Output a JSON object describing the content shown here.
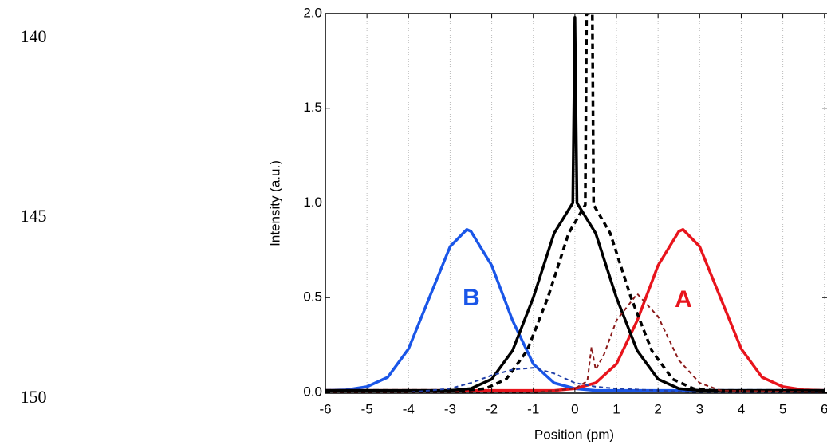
{
  "line_numbers": [
    "140",
    "145",
    "150"
  ],
  "chart_data": {
    "type": "line",
    "xlabel": "Position (pm)",
    "ylabel": "Intensity (a.u.)",
    "annotations": [
      "B",
      "A"
    ],
    "xlim": [
      -6,
      6.12
    ],
    "ylim": [
      0,
      2.0
    ],
    "xticks": [
      -6,
      -5,
      -4,
      -3,
      -2,
      -1,
      0,
      1,
      2,
      3,
      4,
      5,
      6
    ],
    "yticks": [
      {
        "value": 0,
        "label": "0.0"
      },
      {
        "value": 0.5,
        "label": "0.5"
      },
      {
        "value": 1.0,
        "label": "1.0"
      },
      {
        "value": 1.5,
        "label": "1.5"
      },
      {
        "value": 2.0,
        "label": "2.0"
      }
    ],
    "grid": true,
    "series": [
      {
        "color": "#1a56e8",
        "dashed": false,
        "x": [
          -6,
          -5.5,
          -5,
          -4.5,
          -4,
          -3.5,
          -3,
          -2.6,
          -2.5,
          -2,
          -1.5,
          -1,
          -0.5,
          0,
          0.5,
          1,
          6
        ],
        "values": [
          0.01,
          0.013,
          0.03,
          0.08,
          0.23,
          0.5,
          0.77,
          0.86,
          0.85,
          0.67,
          0.38,
          0.15,
          0.05,
          0.02,
          0.01,
          0.01,
          0.01
        ]
      },
      {
        "color": "#e8141c",
        "dashed": false,
        "x": [
          -6,
          -1,
          -0.5,
          0,
          0.5,
          1,
          1.5,
          2,
          2.5,
          2.6,
          3,
          3.5,
          4,
          4.5,
          5,
          5.5,
          6
        ],
        "values": [
          0.01,
          0.01,
          0.01,
          0.02,
          0.05,
          0.15,
          0.38,
          0.67,
          0.85,
          0.86,
          0.77,
          0.5,
          0.23,
          0.08,
          0.03,
          0.013,
          0.01
        ]
      },
      {
        "color": "#000000",
        "dashed": false,
        "x": [
          -6,
          -3,
          -2.5,
          -2,
          -1.5,
          -1,
          -0.5,
          -0.05,
          0,
          0.05,
          0.5,
          1,
          1.5,
          2,
          2.5,
          3,
          6
        ],
        "values": [
          0.01,
          0.01,
          0.02,
          0.07,
          0.22,
          0.5,
          0.84,
          1.0,
          1.98,
          1.0,
          0.84,
          0.5,
          0.22,
          0.07,
          0.02,
          0.01,
          0.01
        ]
      },
      {
        "color": "#000000",
        "dashed": true,
        "x": [
          -6,
          -2.65,
          -2.15,
          -1.65,
          -1.15,
          -0.65,
          -0.15,
          0.25,
          0.28,
          0.42,
          0.45,
          0.85,
          1.35,
          1.85,
          2.35,
          2.85,
          3.35,
          6
        ],
        "values": [
          0.01,
          0.01,
          0.02,
          0.07,
          0.22,
          0.5,
          0.84,
          0.99,
          2.0,
          2.0,
          0.99,
          0.84,
          0.5,
          0.22,
          0.07,
          0.02,
          0.01,
          0.01
        ]
      },
      {
        "color": "#1f3ea8",
        "dashed": true,
        "x": [
          -6,
          -4,
          -3,
          -2.5,
          -2,
          -1.5,
          -1,
          -0.5,
          0,
          0.5,
          1,
          2,
          3,
          6
        ],
        "values": [
          0,
          0,
          0.02,
          0.05,
          0.09,
          0.12,
          0.13,
          0.1,
          0.05,
          0.03,
          0.02,
          0.01,
          0,
          0
        ]
      },
      {
        "color": "#8b1a1a",
        "dashed": true,
        "x": [
          -6,
          -1,
          0,
          0.3,
          0.4,
          0.5,
          0.7,
          1,
          1.5,
          2,
          2.5,
          3,
          3.5,
          6
        ],
        "values": [
          0,
          0,
          0.02,
          0.06,
          0.24,
          0.12,
          0.2,
          0.38,
          0.52,
          0.4,
          0.17,
          0.05,
          0.01,
          0
        ]
      }
    ]
  }
}
